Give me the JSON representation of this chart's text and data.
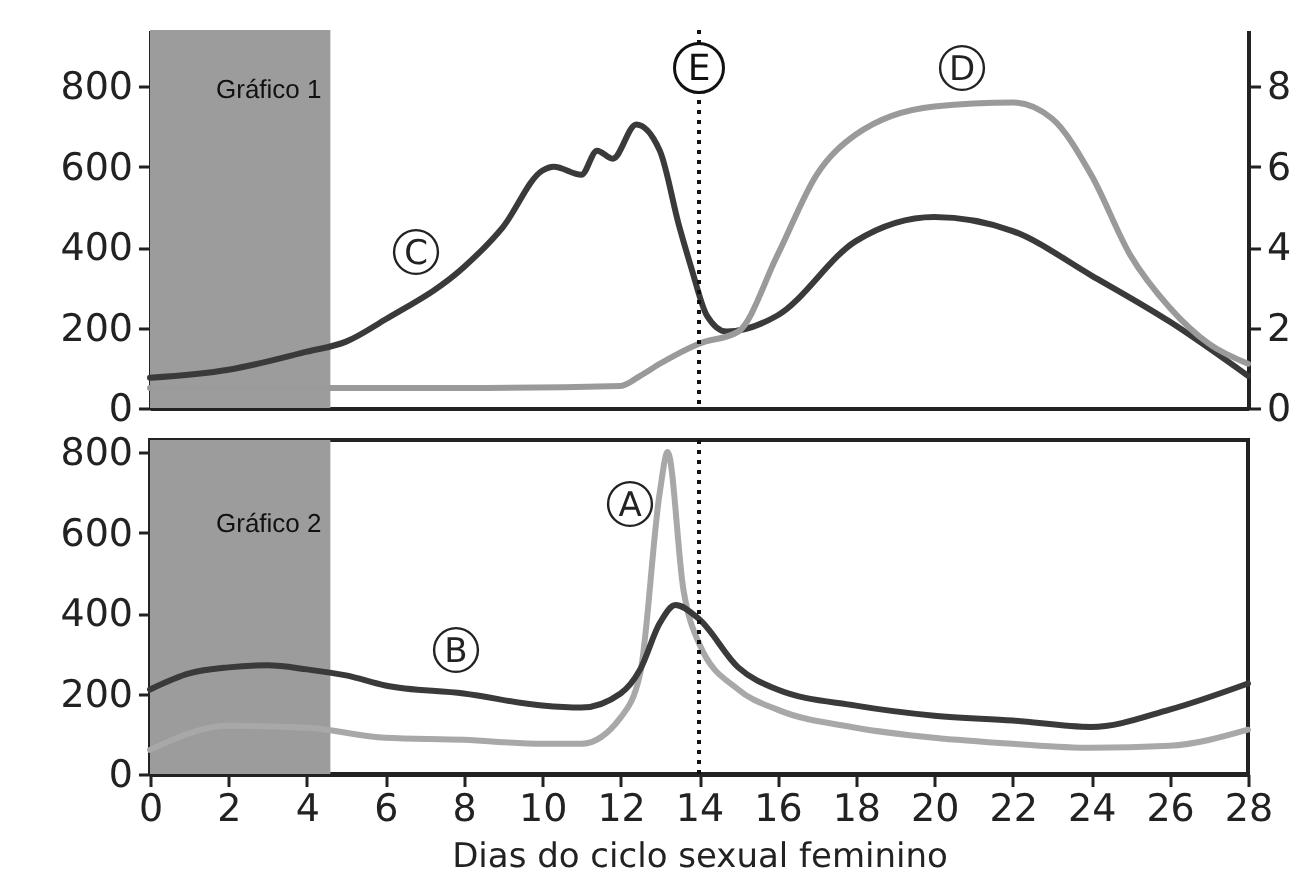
{
  "chart_data": [
    {
      "type": "line",
      "title": "Gráfico 1",
      "xlim": [
        0,
        28
      ],
      "ylim": [
        0,
        940
      ],
      "yticks": [
        0,
        200,
        400,
        600,
        800
      ],
      "y2lim": [
        0,
        9.4
      ],
      "y2ticks": [
        0,
        2,
        4,
        6,
        8
      ],
      "tick_labels": "y",
      "grid": false,
      "bands": [
        {
          "axis": "x",
          "from": 0,
          "to": 4.6,
          "color": "#9c9c9c"
        }
      ],
      "ref_lines": [
        {
          "axis": "x",
          "value": 14,
          "label": "E",
          "line_style": "dotted"
        }
      ],
      "series": [
        {
          "name": "C",
          "color": "#3a3a3a",
          "x": [
            0,
            2,
            4,
            5,
            6,
            8,
            9,
            10,
            10.3,
            11,
            11.4,
            11.8,
            12.4,
            13,
            13.5,
            13.8,
            14.2,
            14.7,
            16,
            18,
            20,
            22,
            24,
            26,
            28
          ],
          "values": [
            75,
            95,
            140,
            165,
            220,
            350,
            450,
            590,
            600,
            580,
            640,
            620,
            705,
            640,
            450,
            350,
            230,
            190,
            230,
            415,
            475,
            440,
            330,
            215,
            80
          ]
        },
        {
          "name": "D",
          "color": "#9a9a9a",
          "axis": "y2",
          "x": [
            0,
            4,
            8,
            12,
            12.5,
            13,
            14,
            15,
            16,
            17,
            18,
            20,
            22,
            23,
            24,
            25,
            26,
            27,
            28
          ],
          "values": [
            0.5,
            0.5,
            0.5,
            0.55,
            0.8,
            1.1,
            1.6,
            1.9,
            3.8,
            5.8,
            6.8,
            7.5,
            7.6,
            7.2,
            5.8,
            3.8,
            2.5,
            1.6,
            1.1
          ]
        }
      ]
    },
    {
      "type": "line",
      "title": "Gráfico 2",
      "xlabel": "Dias do ciclo sexual feminino",
      "xlim": [
        0,
        28
      ],
      "xticks": [
        0,
        2,
        4,
        6,
        8,
        10,
        12,
        14,
        16,
        18,
        20,
        22,
        24,
        26,
        28
      ],
      "ylim": [
        0,
        830
      ],
      "yticks": [
        0,
        200,
        400,
        600,
        800
      ],
      "grid": false,
      "bands": [
        {
          "axis": "x",
          "from": 0,
          "to": 4.6,
          "color": "#9c9c9c"
        }
      ],
      "ref_lines": [
        {
          "axis": "x",
          "value": 14,
          "line_style": "dotted"
        }
      ],
      "series": [
        {
          "name": "A",
          "color": "#a8a8a8",
          "x": [
            0,
            2,
            4,
            6,
            8,
            10,
            11,
            12,
            12.5,
            13,
            13.2,
            13.6,
            14,
            15,
            16,
            18,
            20,
            22,
            24,
            26,
            28
          ],
          "values": [
            60,
            120,
            115,
            90,
            85,
            75,
            75,
            140,
            250,
            700,
            800,
            460,
            325,
            210,
            160,
            115,
            90,
            75,
            65,
            70,
            110
          ]
        },
        {
          "name": "B",
          "color": "#3a3a3a",
          "x": [
            0,
            1,
            2,
            3,
            4,
            5,
            6,
            8,
            10,
            11,
            12,
            12.5,
            13,
            13.4,
            14,
            15,
            16,
            18,
            20,
            22,
            24,
            26,
            28
          ],
          "values": [
            210,
            250,
            265,
            270,
            260,
            245,
            220,
            200,
            170,
            165,
            200,
            260,
            375,
            420,
            385,
            265,
            210,
            170,
            145,
            133,
            117,
            160,
            225
          ]
        }
      ]
    }
  ]
}
